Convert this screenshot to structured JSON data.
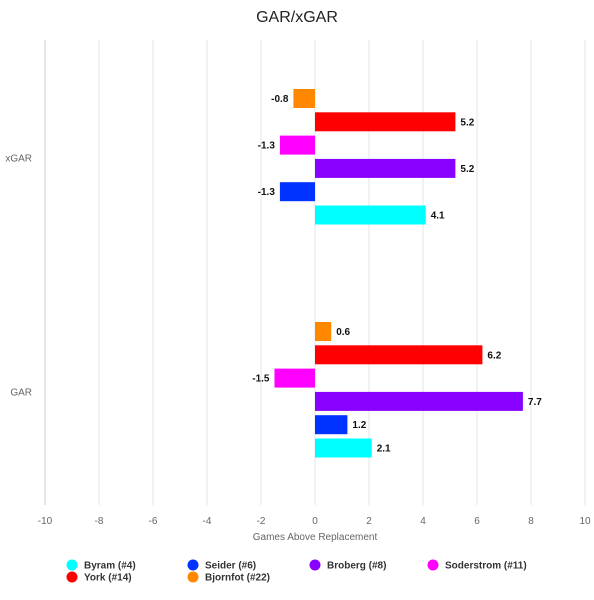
{
  "chart_data": {
    "type": "bar",
    "orientation": "horizontal",
    "title": "GAR/xGAR",
    "xlabel": "Games Above Replacement",
    "ylabel": "",
    "xlim": [
      -10,
      10
    ],
    "xticks": [
      -10,
      -8,
      -6,
      -4,
      -2,
      0,
      2,
      4,
      6,
      8,
      10
    ],
    "grid": true,
    "legend_position": "bottom",
    "categories": [
      "xGAR",
      "GAR"
    ],
    "series": [
      {
        "name": "Byram (#4)",
        "color": "#00ffff",
        "values": [
          4.1,
          2.1
        ],
        "labels": [
          "4.1",
          "2.1"
        ]
      },
      {
        "name": "Seider (#6)",
        "color": "#0033ff",
        "values": [
          -1.3,
          1.2
        ],
        "labels": [
          "-1.3",
          "1.2"
        ]
      },
      {
        "name": "Broberg (#8)",
        "color": "#8800ff",
        "values": [
          5.2,
          7.7
        ],
        "labels": [
          "5.2",
          "7.7"
        ]
      },
      {
        "name": "Soderstrom (#11)",
        "color": "#ff00ff",
        "values": [
          -1.3,
          -1.5
        ],
        "labels": [
          "-1.3",
          "-1.5"
        ]
      },
      {
        "name": "York (#14)",
        "color": "#ff0000",
        "values": [
          5.2,
          6.2
        ],
        "labels": [
          "5.2",
          "6.2"
        ]
      },
      {
        "name": "Bjornfot (#22)",
        "color": "#ff8800",
        "values": [
          -0.8,
          0.6
        ],
        "labels": [
          "-0.8",
          "0.6"
        ]
      }
    ]
  }
}
